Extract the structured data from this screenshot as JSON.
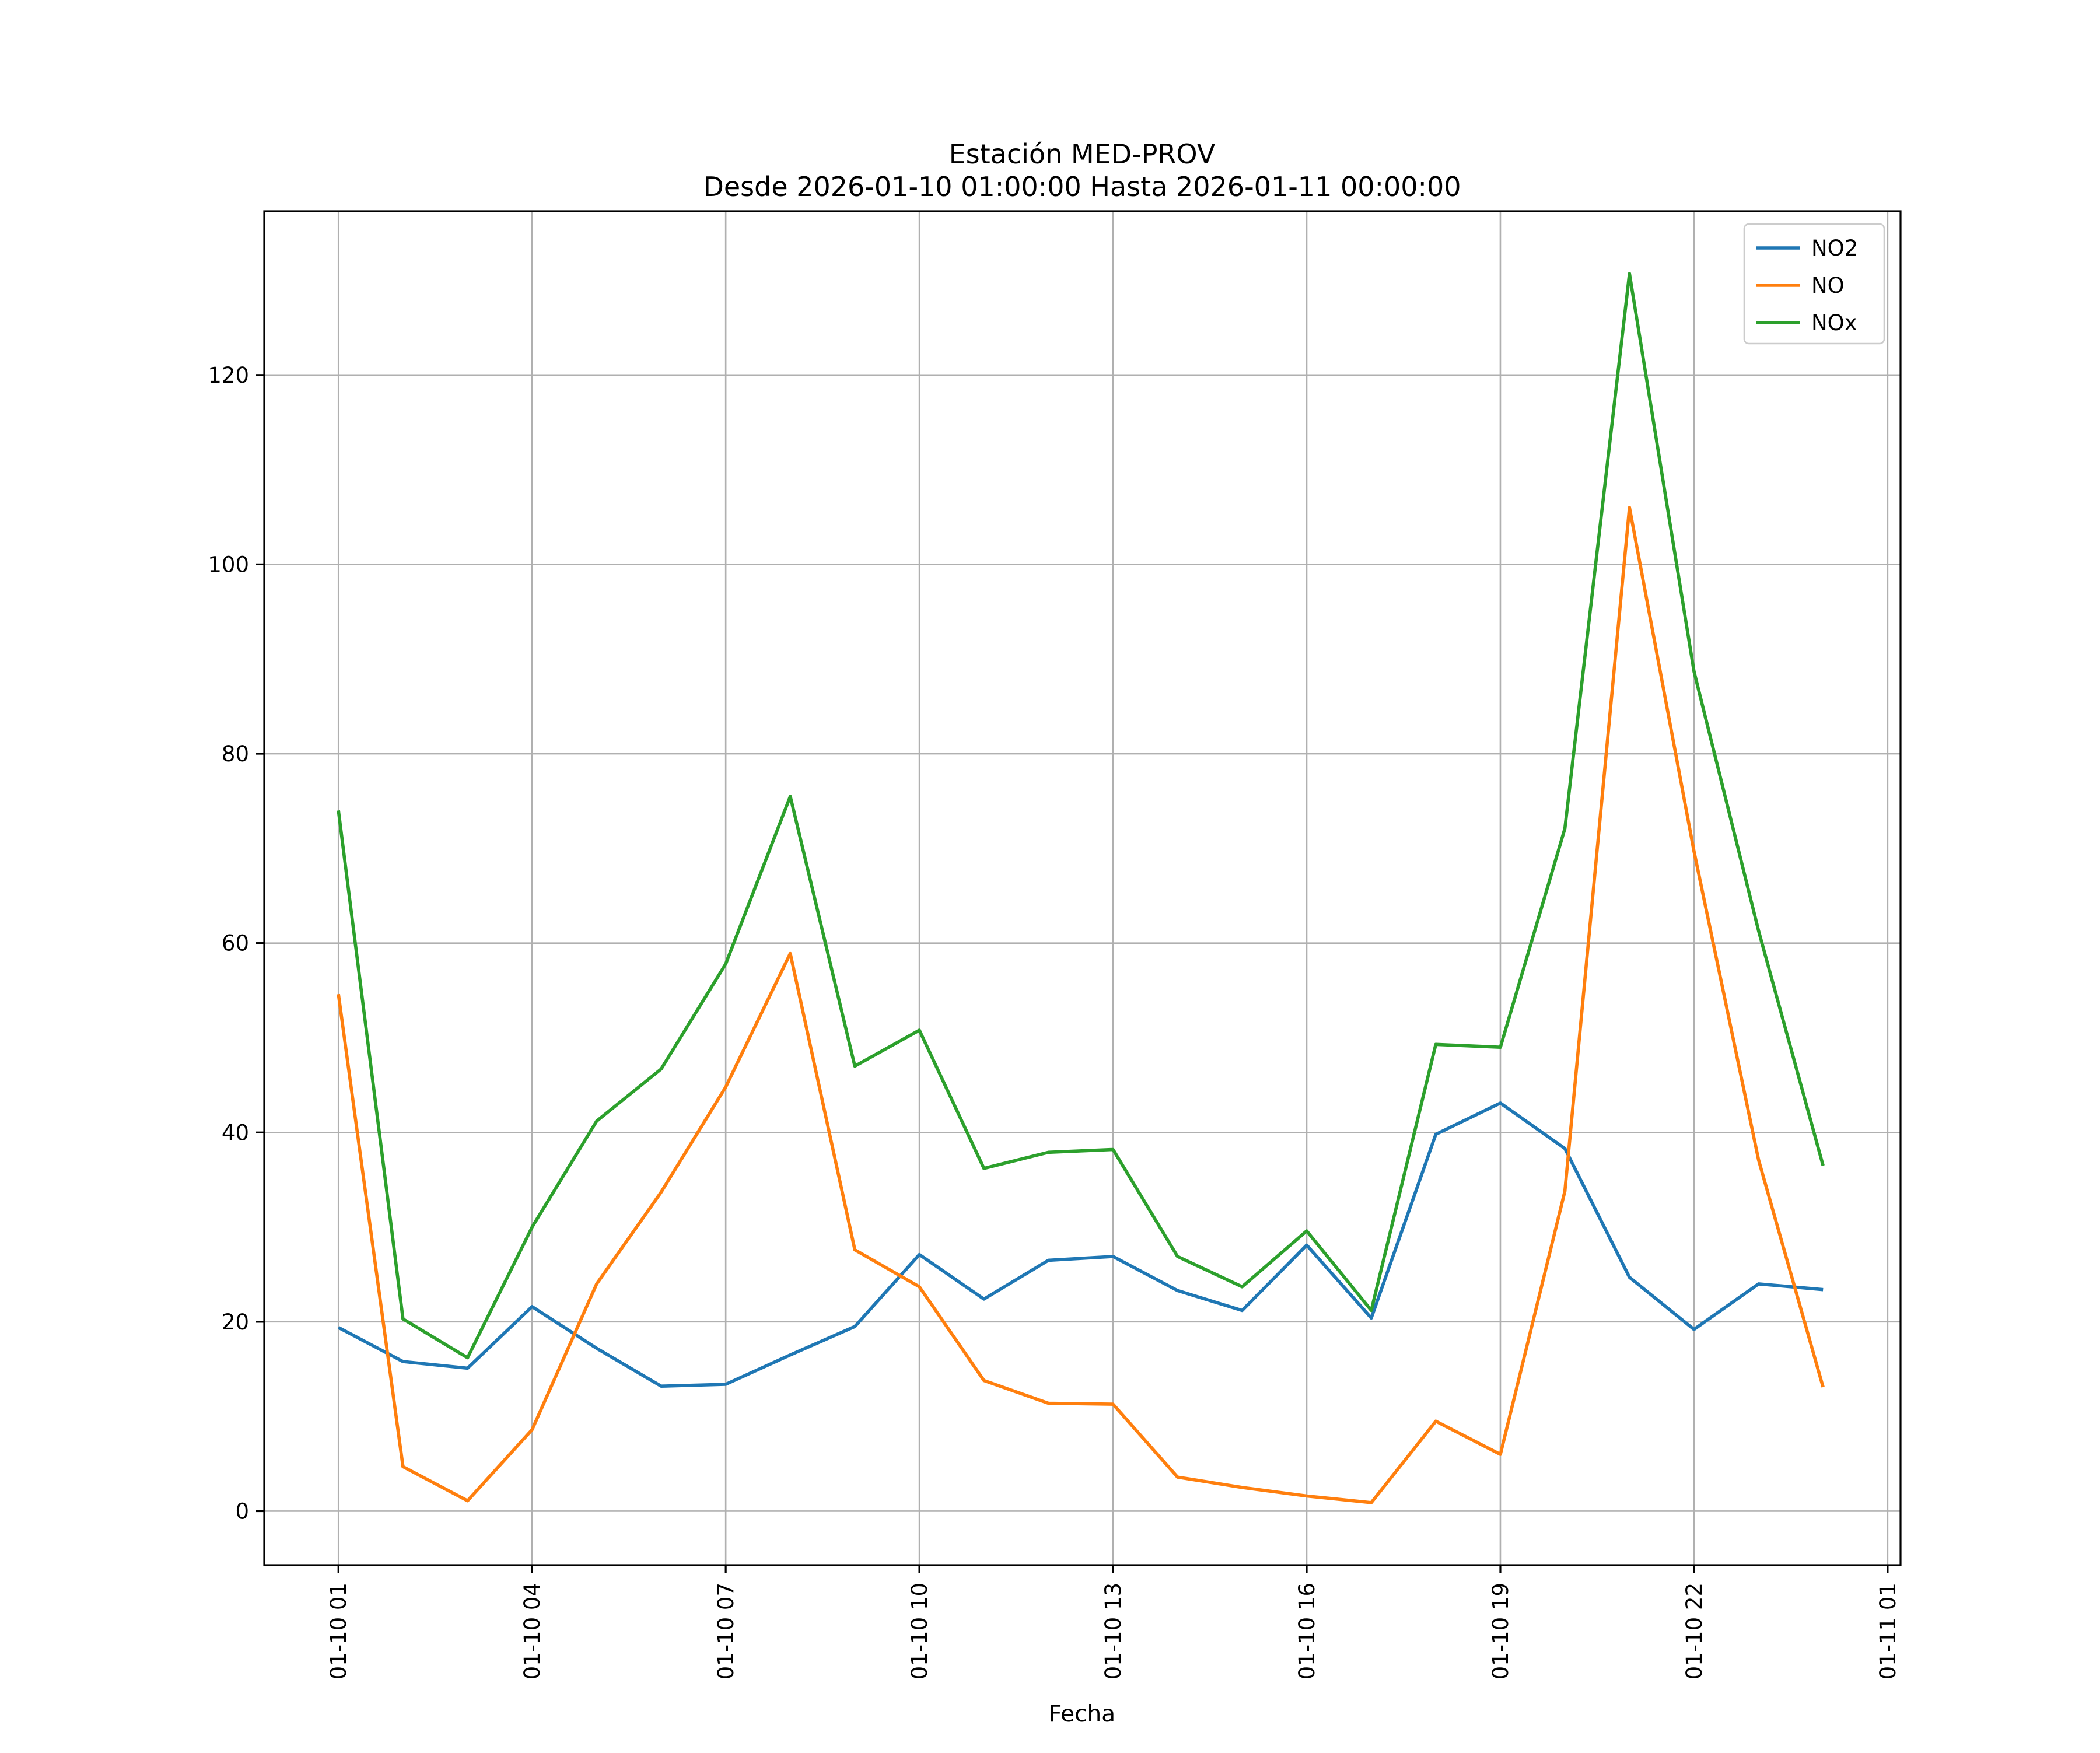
{
  "chart_data": {
    "type": "line",
    "title_line1": "Estación MED-PROV",
    "title_line2": "Desde 2026-01-10 01:00:00 Hasta 2026-01-11 00:00:00",
    "xlabel": "Fecha",
    "ylabel": "",
    "x": [
      "01-10 01",
      "01-10 02",
      "01-10 03",
      "01-10 04",
      "01-10 05",
      "01-10 06",
      "01-10 07",
      "01-10 08",
      "01-10 09",
      "01-10 10",
      "01-10 11",
      "01-10 12",
      "01-10 13",
      "01-10 14",
      "01-10 15",
      "01-10 16",
      "01-10 17",
      "01-10 18",
      "01-10 19",
      "01-10 20",
      "01-10 21",
      "01-10 22",
      "01-10 23",
      "01-11 00"
    ],
    "x_hours": [
      1,
      2,
      3,
      4,
      5,
      6,
      7,
      8,
      9,
      10,
      11,
      12,
      13,
      14,
      15,
      16,
      17,
      18,
      19,
      20,
      21,
      22,
      23,
      24
    ],
    "xlim_hours": [
      -0.15,
      25.2
    ],
    "ylim": [
      -5.7,
      137.3
    ],
    "xticks": [
      {
        "hour": 1,
        "label": "01-10 01"
      },
      {
        "hour": 4,
        "label": "01-10 04"
      },
      {
        "hour": 7,
        "label": "01-10 07"
      },
      {
        "hour": 10,
        "label": "01-10 10"
      },
      {
        "hour": 13,
        "label": "01-10 13"
      },
      {
        "hour": 16,
        "label": "01-10 16"
      },
      {
        "hour": 19,
        "label": "01-10 19"
      },
      {
        "hour": 22,
        "label": "01-10 22"
      },
      {
        "hour": 25,
        "label": "01-11 01"
      }
    ],
    "yticks": [
      0,
      20,
      40,
      60,
      80,
      100,
      120
    ],
    "grid": true,
    "legend_position": "top-right",
    "series": [
      {
        "name": "NO2",
        "color": "#1f77b4",
        "values": [
          19.4,
          15.8,
          15.1,
          21.6,
          17.2,
          13.2,
          13.4,
          16.5,
          19.5,
          27.1,
          22.4,
          26.5,
          26.9,
          23.3,
          21.2,
          28.1,
          20.4,
          39.8,
          43.1,
          38.3,
          24.7,
          19.2,
          24.0,
          23.4
        ]
      },
      {
        "name": "NO",
        "color": "#ff7f0e",
        "values": [
          54.6,
          4.7,
          1.1,
          8.6,
          24.0,
          33.7,
          44.8,
          58.9,
          27.6,
          23.7,
          13.8,
          11.4,
          11.3,
          3.6,
          2.5,
          1.6,
          0.9,
          9.5,
          6.0,
          33.8,
          106.0,
          69.7,
          37.1,
          13.1
        ]
      },
      {
        "name": "NOx",
        "color": "#2ca02c",
        "values": [
          74.0,
          20.3,
          16.2,
          30.0,
          41.2,
          46.7,
          57.8,
          75.5,
          47.0,
          50.8,
          36.2,
          37.9,
          38.2,
          26.9,
          23.7,
          29.6,
          21.2,
          49.3,
          49.0,
          72.1,
          130.7,
          88.7,
          61.3,
          36.5
        ]
      }
    ]
  }
}
